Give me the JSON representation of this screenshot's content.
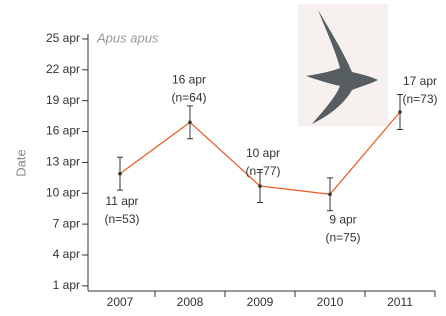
{
  "chart_data": {
    "type": "line",
    "annotation": "Apus apus",
    "y_label": "Date",
    "categories": [
      "2007",
      "2008",
      "2009",
      "2010",
      "2011"
    ],
    "series": [
      {
        "name": "Apus apus",
        "color": "#e8632b",
        "values": [
          11.9,
          16.9,
          10.7,
          9.9,
          17.9
        ],
        "errors": [
          1.6,
          1.6,
          1.6,
          1.6,
          1.7
        ],
        "value_labels": [
          "11 apr",
          "16 apr",
          "10 apr",
          "9 apr",
          "17 apr"
        ],
        "sample_labels": [
          "(n=53)",
          "(n=64)",
          "(n=77)",
          "(n=75)",
          "(n=73)"
        ]
      }
    ],
    "ylim": [
      0.5,
      25.5
    ],
    "yticks": [
      {
        "value": 1,
        "label": "1 apr"
      },
      {
        "value": 4,
        "label": "4 apr"
      },
      {
        "value": 7,
        "label": "7 apr"
      },
      {
        "value": 10,
        "label": "10 apr"
      },
      {
        "value": 13,
        "label": "13 apr"
      },
      {
        "value": 16,
        "label": "16 apr"
      },
      {
        "value": 19,
        "label": "19 apr"
      },
      {
        "value": 22,
        "label": "22 apr"
      },
      {
        "value": 25,
        "label": "25 apr"
      }
    ]
  }
}
